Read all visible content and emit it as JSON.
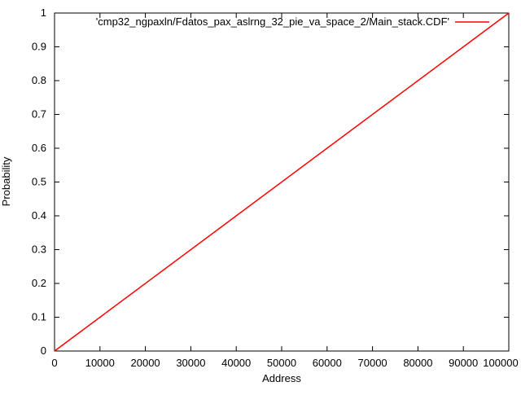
{
  "colors": {
    "background": "#ffffff",
    "axis": "#000000",
    "series_red": "#ff0000"
  },
  "chart_data": {
    "type": "line",
    "title": "",
    "xlabel": "Address",
    "ylabel": "Probability",
    "xlim": [
      0,
      100000
    ],
    "ylim": [
      0,
      1
    ],
    "grid": false,
    "x_ticks": [
      0,
      10000,
      20000,
      30000,
      40000,
      50000,
      60000,
      70000,
      80000,
      90000,
      100000
    ],
    "x_tick_labels": [
      "0",
      "10000",
      "20000",
      "30000",
      "40000",
      "50000",
      "60000",
      "70000",
      "80000",
      "90000",
      "100000"
    ],
    "y_ticks": [
      0,
      0.1,
      0.2,
      0.3,
      0.4,
      0.5,
      0.6,
      0.7,
      0.8,
      0.9,
      1
    ],
    "y_tick_labels": [
      "0",
      "0.1",
      "0.2",
      "0.3",
      "0.4",
      "0.5",
      "0.6",
      "0.7",
      "0.8",
      "0.9",
      "1"
    ],
    "legend": {
      "position": "top-right-inside",
      "entries": [
        {
          "label": "'cmp32_ngpaxln/Fdatos_pax_aslrng_32_pie_va_space_2/Main_stack.CDF'",
          "color": "#ff0000"
        }
      ]
    },
    "series": [
      {
        "name": "'cmp32_ngpaxln/Fdatos_pax_aslrng_32_pie_va_space_2/Main_stack.CDF'",
        "color": "#ff0000",
        "points": [
          [
            0,
            0.0
          ],
          [
            100000,
            1.0
          ]
        ]
      }
    ]
  }
}
